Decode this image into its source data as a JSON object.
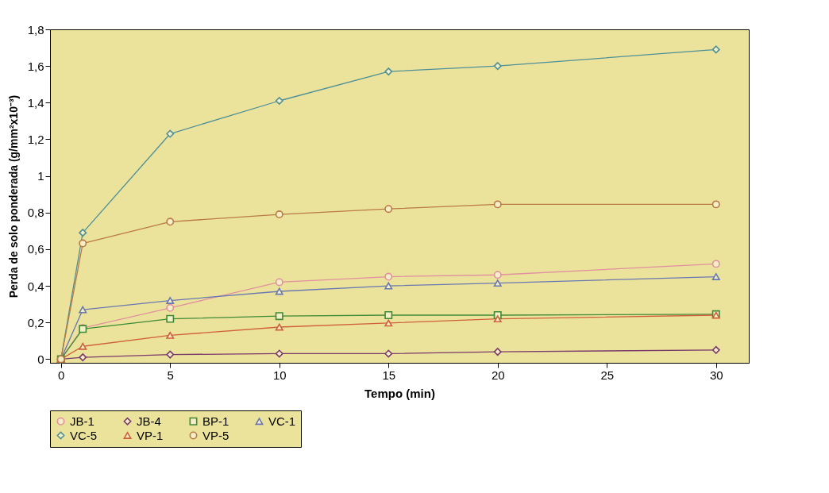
{
  "chart_data": {
    "type": "line",
    "xlabel": "Tempo (min)",
    "ylabel": "Perda de solo ponderada (g/mm²x10⁻³)",
    "x": [
      0,
      1,
      5,
      10,
      15,
      20,
      30
    ],
    "series": [
      {
        "name": "JB-1",
        "color": "#e0909f",
        "marker": "circle",
        "values": [
          0,
          0.17,
          0.28,
          0.42,
          0.45,
          0.46,
          0.52
        ]
      },
      {
        "name": "JB-4",
        "color": "#7a3a6a",
        "marker": "diamond",
        "values": [
          0,
          0.01,
          0.025,
          0.03,
          0.03,
          0.04,
          0.05
        ]
      },
      {
        "name": "BP-1",
        "color": "#3f8a35",
        "marker": "square",
        "values": [
          0,
          0.165,
          0.22,
          0.235,
          0.24,
          0.24,
          0.245
        ]
      },
      {
        "name": "VC-1",
        "color": "#6a78b0",
        "marker": "triangle",
        "values": [
          0,
          0.27,
          0.32,
          0.37,
          0.4,
          0.415,
          0.45
        ]
      },
      {
        "name": "VC-5",
        "color": "#4f9098",
        "marker": "diamond",
        "values": [
          0,
          0.69,
          1.23,
          1.41,
          1.57,
          1.6,
          1.69
        ]
      },
      {
        "name": "VP-1",
        "color": "#d0603a",
        "marker": "triangle",
        "values": [
          0,
          0.07,
          0.13,
          0.175,
          0.197,
          0.22,
          0.24
        ]
      },
      {
        "name": "VP-5",
        "color": "#b97a45",
        "marker": "circle",
        "values": [
          0,
          0.632,
          0.75,
          0.79,
          0.82,
          0.845,
          0.845
        ]
      }
    ],
    "xlim": [
      -0.5,
      31.5
    ],
    "xticks": [
      0,
      5,
      10,
      15,
      20,
      25,
      30
    ],
    "ylim": [
      -0.02,
      1.8
    ],
    "yticks": [
      {
        "value": 0,
        "label": "0"
      },
      {
        "value": 0.2,
        "label": "0,2"
      },
      {
        "value": 0.4,
        "label": "0,4"
      },
      {
        "value": 0.6,
        "label": "0,6"
      },
      {
        "value": 0.8,
        "label": "0,8"
      },
      {
        "value": 1,
        "label": "1"
      },
      {
        "value": 1.2,
        "label": "1,2"
      },
      {
        "value": 1.4,
        "label": "1,4"
      },
      {
        "value": 1.6,
        "label": "1,6"
      },
      {
        "value": 1.8,
        "label": "1,8"
      }
    ],
    "grid": false,
    "legend": "bottom",
    "line_style": "solid"
  }
}
